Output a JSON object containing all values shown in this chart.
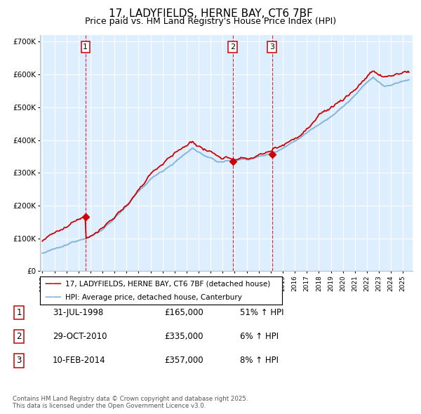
{
  "title": "17, LADYFIELDS, HERNE BAY, CT6 7BF",
  "subtitle": "Price paid vs. HM Land Registry's House Price Index (HPI)",
  "ylim": [
    0,
    720000
  ],
  "yticks": [
    0,
    100000,
    200000,
    300000,
    400000,
    500000,
    600000,
    700000
  ],
  "ytick_labels": [
    "£0",
    "£100K",
    "£200K",
    "£300K",
    "£400K",
    "£500K",
    "£600K",
    "£700K"
  ],
  "hpi_color": "#7bafd4",
  "price_color": "#cc0000",
  "vline_color": "#cc0000",
  "chart_bg": "#ddeeff",
  "grid_color": "#ffffff",
  "fig_bg": "#ffffff",
  "sale_dates": [
    "1998-07-31",
    "2010-10-29",
    "2014-02-10"
  ],
  "sale_prices": [
    165000,
    335000,
    357000
  ],
  "sale_labels": [
    "1",
    "2",
    "3"
  ],
  "legend_label_price": "17, LADYFIELDS, HERNE BAY, CT6 7BF (detached house)",
  "legend_label_hpi": "HPI: Average price, detached house, Canterbury",
  "table_entries": [
    {
      "num": "1",
      "date": "31-JUL-1998",
      "price": "£165,000",
      "hpi": "51% ↑ HPI"
    },
    {
      "num": "2",
      "date": "29-OCT-2010",
      "price": "£335,000",
      "hpi": "6% ↑ HPI"
    },
    {
      "num": "3",
      "date": "10-FEB-2014",
      "price": "£357,000",
      "hpi": "8% ↑ HPI"
    }
  ],
  "footnote": "Contains HM Land Registry data © Crown copyright and database right 2025.\nThis data is licensed under the Open Government Licence v3.0.",
  "title_fontsize": 11,
  "subtitle_fontsize": 9,
  "tick_fontsize": 7.5,
  "xstart": 1994.8,
  "xend": 2025.8
}
